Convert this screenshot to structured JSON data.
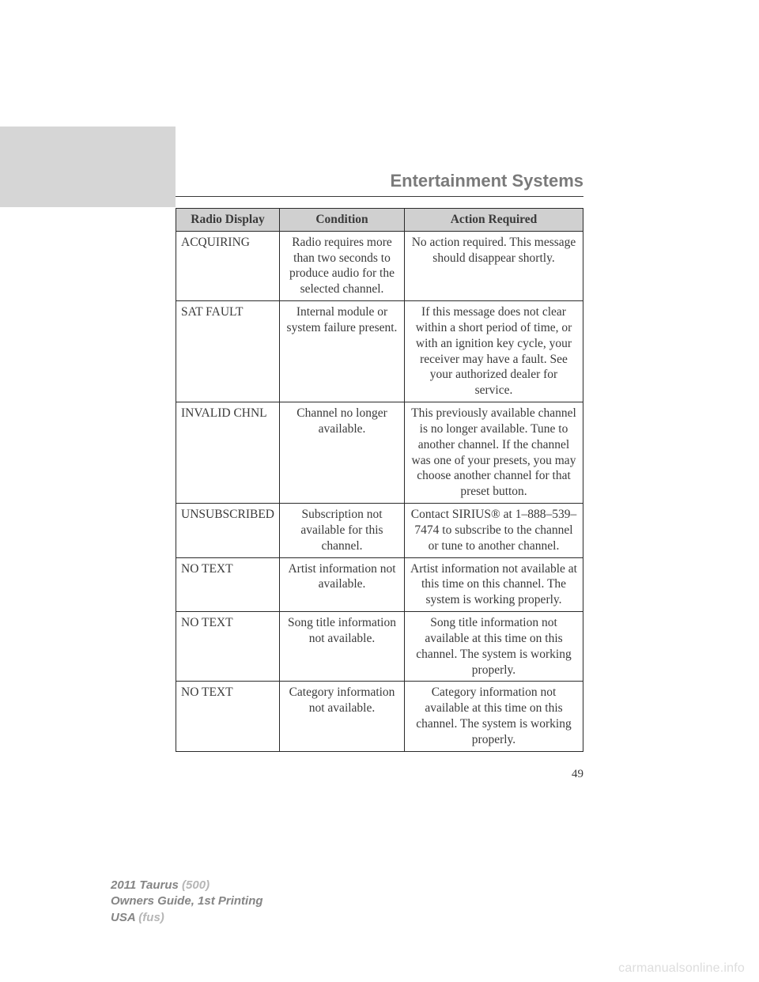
{
  "section_title": "Entertainment Systems",
  "page_number": "49",
  "table": {
    "headers": [
      "Radio Display",
      "Condition",
      "Action Required"
    ],
    "rows": [
      {
        "display": "ACQUIRING",
        "condition": "Radio requires more than two seconds to produce audio for the selected channel.",
        "action": "No action required. This message should disappear shortly."
      },
      {
        "display": "SAT FAULT",
        "condition": "Internal module or system failure present.",
        "action": "If this message does not clear within a short period of time, or with an ignition key cycle, your receiver may have a fault. See your authorized dealer for service."
      },
      {
        "display": "INVALID CHNL",
        "condition": "Channel no longer available.",
        "action": "This previously available channel is no longer available. Tune to another channel. If the channel was one of your presets, you may choose another channel for that preset button."
      },
      {
        "display": "UNSUBSCRIBED",
        "condition": "Subscription not available for this channel.",
        "action": "Contact SIRIUS® at 1–888–539–7474 to subscribe to the channel or tune to another channel."
      },
      {
        "display": "NO TEXT",
        "condition": "Artist information not available.",
        "action": "Artist information not available at this time on this channel. The system is working properly."
      },
      {
        "display": "NO TEXT",
        "condition": "Song title information not available.",
        "action": "Song title information not available at this time on this channel. The system is working properly."
      },
      {
        "display": "NO TEXT",
        "condition": "Category information not available.",
        "action": "Category information not available at this time on this channel. The system is working properly."
      }
    ]
  },
  "footer": {
    "line1_dark": "2011 Taurus",
    "line1_light": " (500)",
    "line2_dark": "Owners Guide, 1st Printing",
    "line3_dark": "USA",
    "line3_light": " (fus)"
  },
  "watermark": "carmanualsonline.info",
  "colors": {
    "page_bg": "#ffffff",
    "gray_block": "#d6d6d6",
    "header_bg": "#d0d0d0",
    "text": "#3a3a3a",
    "title_gray": "#7a7a7a",
    "footer_light": "#b6b6b6",
    "footer_dark": "#858585",
    "watermark": "#dddddd",
    "border": "#2a2a2a"
  }
}
